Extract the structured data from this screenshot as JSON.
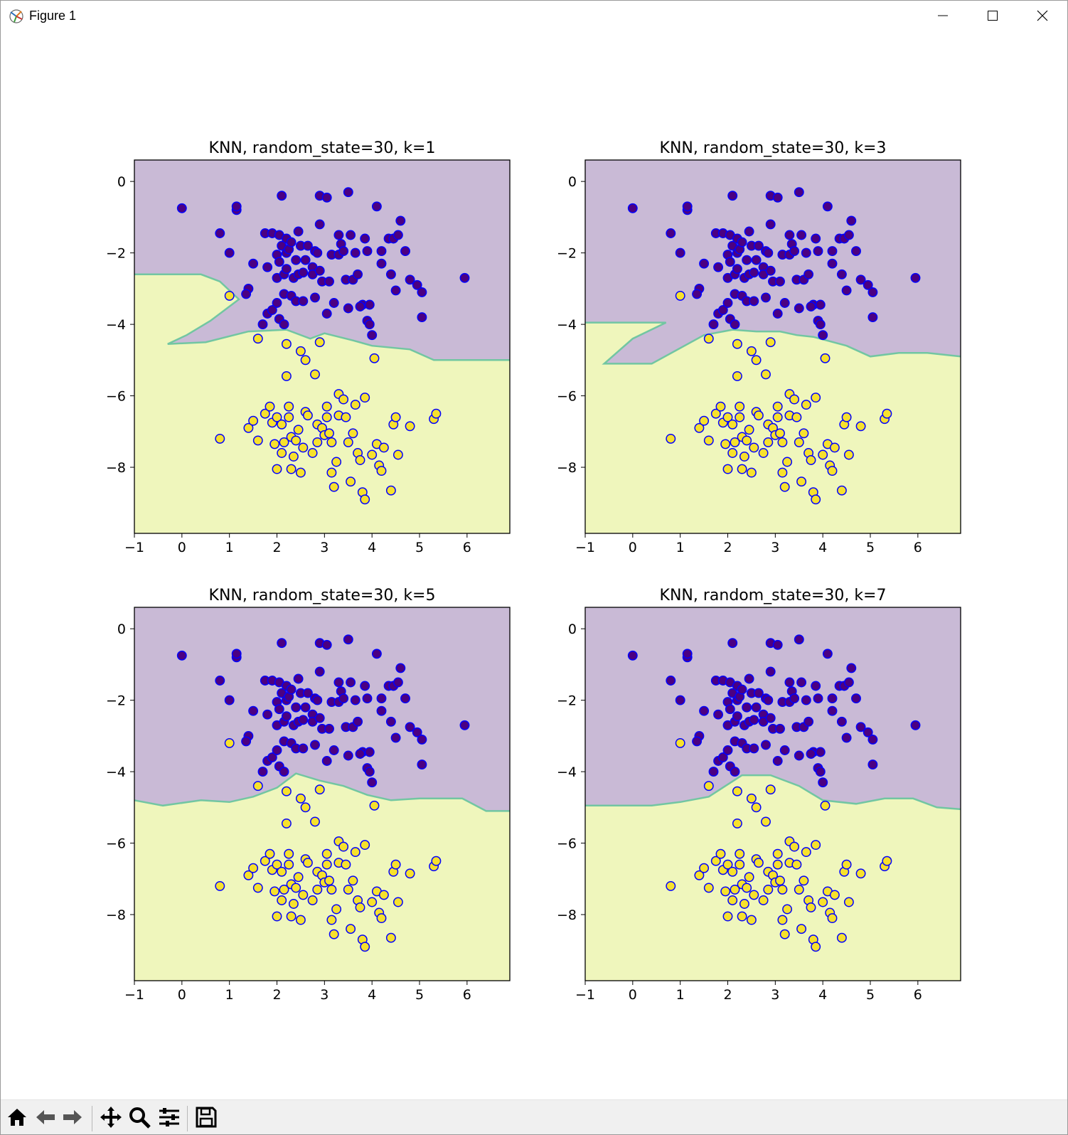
{
  "window": {
    "title": "Figure 1",
    "icons": {
      "app": "matplotlib-figure-icon",
      "minimize": "minimize-icon",
      "maximize": "maximize-icon",
      "close": "close-icon"
    }
  },
  "toolbar": {
    "buttons": [
      {
        "name": "home-button",
        "icon": "home-icon"
      },
      {
        "name": "back-button",
        "icon": "arrow-left-icon"
      },
      {
        "name": "forward-button",
        "icon": "arrow-right-icon"
      },
      {
        "name": "pan-button",
        "icon": "move-icon"
      },
      {
        "name": "zoom-button",
        "icon": "magnifier-icon"
      },
      {
        "name": "configure-subplots-button",
        "icon": "sliders-icon"
      },
      {
        "name": "save-button",
        "icon": "floppy-disk-icon"
      }
    ]
  },
  "colors": {
    "region_class0": "#c9bad6",
    "region_class1": "#eff6bc",
    "class0_fill": "#4b0082",
    "class1_fill": "#f7e12c",
    "marker_edge": "#0000ff",
    "boundary": "#72c6a2"
  },
  "chart_data": [
    {
      "type": "scatter",
      "title": "KNN, random_state=30, k=1",
      "xlabel": "",
      "ylabel": "",
      "xlim": [
        -1,
        6.9
      ],
      "ylim": [
        -9.85,
        0.6
      ],
      "xticks": [
        "−1",
        "0",
        "1",
        "2",
        "3",
        "4",
        "5",
        "6"
      ],
      "yticks": [
        "0",
        "−2",
        "−4",
        "−6",
        "−8"
      ],
      "grid": false,
      "boundary": [
        [
          -1,
          -2.6
        ],
        [
          0.4,
          -2.6
        ],
        [
          0.8,
          -2.8
        ],
        [
          1.2,
          -3.3
        ],
        [
          0.6,
          -3.9
        ],
        [
          0.1,
          -4.3
        ],
        [
          -0.3,
          -4.55
        ],
        [
          0.5,
          -4.5
        ],
        [
          1.4,
          -4.2
        ],
        [
          2.2,
          -4.15
        ],
        [
          2.7,
          -4.4
        ],
        [
          3.0,
          -4.25
        ],
        [
          3.6,
          -4.45
        ],
        [
          4.0,
          -4.6
        ],
        [
          4.8,
          -4.7
        ],
        [
          5.3,
          -5.0
        ],
        [
          6.9,
          -5.0
        ]
      ],
      "series": [
        {
          "class": 0,
          "points": [
            [
              0,
              -0.75
            ],
            [
              0.8,
              -1.45
            ],
            [
              1,
              -2
            ],
            [
              1.15,
              -0.8
            ],
            [
              1.15,
              -0.7
            ],
            [
              1.4,
              -3
            ],
            [
              1.5,
              -2.3
            ],
            [
              1.7,
              -4
            ],
            [
              1.75,
              -1.45
            ],
            [
              1.8,
              -2.4
            ],
            [
              1.8,
              -3.7
            ],
            [
              1.9,
              -1.45
            ],
            [
              1.9,
              -3.6
            ],
            [
              2,
              -2.05
            ],
            [
              2,
              -2.7
            ],
            [
              2,
              -3.4
            ],
            [
              2.05,
              -1.5
            ],
            [
              2.05,
              -2.25
            ],
            [
              2.05,
              -3.85
            ],
            [
              2.1,
              -0.4
            ],
            [
              2.1,
              -1.8
            ],
            [
              2.15,
              -2.6
            ],
            [
              2.15,
              -3.15
            ],
            [
              2.2,
              -1.6
            ],
            [
              2.2,
              -2
            ],
            [
              2.2,
              -2.45
            ],
            [
              2.25,
              -1.9
            ],
            [
              2.3,
              -1.7
            ],
            [
              2.3,
              -3.2
            ],
            [
              2.35,
              -2.7
            ],
            [
              2.4,
              -2.2
            ],
            [
              2.4,
              -3.35
            ],
            [
              2.45,
              -1.4
            ],
            [
              2.45,
              -2.6
            ],
            [
              2.5,
              -1.8
            ],
            [
              2.55,
              -2.55
            ],
            [
              2.55,
              -3.35
            ],
            [
              2.6,
              -2.2
            ],
            [
              2.65,
              -1.8
            ],
            [
              2.75,
              -2.4
            ],
            [
              2.75,
              -2.6
            ],
            [
              2.8,
              -1.95
            ],
            [
              2.8,
              -3.25
            ],
            [
              2.85,
              -2
            ],
            [
              2.9,
              -0.4
            ],
            [
              2.9,
              -1.2
            ],
            [
              2.9,
              -2.5
            ],
            [
              2.95,
              -2.8
            ],
            [
              3.05,
              -0.45
            ],
            [
              3.05,
              -3.7
            ],
            [
              3.1,
              -2.8
            ],
            [
              3.15,
              -2.05
            ],
            [
              3.2,
              -3.4
            ],
            [
              3.3,
              -1.5
            ],
            [
              3.3,
              -2.05
            ],
            [
              3.35,
              -1.75
            ],
            [
              3.4,
              -1.95
            ],
            [
              3.45,
              -2.75
            ],
            [
              3.5,
              -0.3
            ],
            [
              3.5,
              -3.55
            ],
            [
              3.55,
              -1.5
            ],
            [
              3.6,
              -2.75
            ],
            [
              3.65,
              -2.0
            ],
            [
              3.7,
              -2.6
            ],
            [
              3.8,
              -3.45
            ],
            [
              3.85,
              -1.6
            ],
            [
              3.9,
              -1.95
            ],
            [
              3.9,
              -3.9
            ],
            [
              3.95,
              -4.0
            ],
            [
              3.95,
              -3.45
            ],
            [
              4,
              -4.3
            ],
            [
              4.1,
              -0.7
            ],
            [
              4.2,
              -1.95
            ],
            [
              4.35,
              -1.6
            ],
            [
              4.45,
              -1.6
            ],
            [
              4.4,
              -2.6
            ],
            [
              4.55,
              -1.5
            ],
            [
              4.6,
              -1.1
            ],
            [
              4.7,
              -1.95
            ],
            [
              4.8,
              -2.75
            ],
            [
              4.95,
              -2.9
            ],
            [
              5.05,
              -3.1
            ],
            [
              5.05,
              -3.8
            ],
            [
              5.95,
              -2.7
            ],
            [
              4.5,
              -3.05
            ],
            [
              3.75,
              -3.5
            ],
            [
              2.15,
              -4.0
            ],
            [
              1.35,
              -3.15
            ],
            [
              4.2,
              -2.3
            ]
          ]
        },
        {
          "class": 1,
          "points": [
            [
              0.8,
              -7.2
            ],
            [
              1,
              -3.2
            ],
            [
              1.4,
              -6.9
            ],
            [
              1.5,
              -6.7
            ],
            [
              1.6,
              -4.4
            ],
            [
              1.6,
              -7.25
            ],
            [
              1.75,
              -6.5
            ],
            [
              1.85,
              -6.3
            ],
            [
              1.9,
              -6.75
            ],
            [
              2,
              -8.05
            ],
            [
              2,
              -6.6
            ],
            [
              2.1,
              -6.8
            ],
            [
              2.15,
              -7.3
            ],
            [
              2.2,
              -5.45
            ],
            [
              2.2,
              -4.55
            ],
            [
              2.25,
              -6.3
            ],
            [
              2.25,
              -6.6
            ],
            [
              2.3,
              -7.15
            ],
            [
              2.3,
              -8.05
            ],
            [
              2.35,
              -7.7
            ],
            [
              2.4,
              -7.25
            ],
            [
              2.45,
              -6.95
            ],
            [
              2.5,
              -4.75
            ],
            [
              2.5,
              -8.15
            ],
            [
              2.6,
              -5.0
            ],
            [
              2.6,
              -6.45
            ],
            [
              2.65,
              -6.55
            ],
            [
              2.75,
              -7.6
            ],
            [
              2.8,
              -5.4
            ],
            [
              2.85,
              -6.8
            ],
            [
              2.85,
              -7.3
            ],
            [
              2.9,
              -4.5
            ],
            [
              2.95,
              -6.9
            ],
            [
              3,
              -7.1
            ],
            [
              3.05,
              -6.3
            ],
            [
              3.05,
              -6.6
            ],
            [
              3.1,
              -7.05
            ],
            [
              3.15,
              -7.3
            ],
            [
              3.2,
              -8.55
            ],
            [
              3.25,
              -7.85
            ],
            [
              3.3,
              -5.95
            ],
            [
              3.3,
              -6.55
            ],
            [
              3.4,
              -6.1
            ],
            [
              3.45,
              -6.6
            ],
            [
              3.5,
              -7.3
            ],
            [
              3.55,
              -8.4
            ],
            [
              3.6,
              -7.05
            ],
            [
              3.65,
              -6.25
            ],
            [
              3.7,
              -7.6
            ],
            [
              3.75,
              -7.8
            ],
            [
              3.8,
              -8.7
            ],
            [
              3.85,
              -6.05
            ],
            [
              3.85,
              -8.9
            ],
            [
              4,
              -7.65
            ],
            [
              4.05,
              -4.95
            ],
            [
              4.1,
              -7.35
            ],
            [
              4.15,
              -7.95
            ],
            [
              4.2,
              -8.1
            ],
            [
              4.4,
              -8.65
            ],
            [
              4.45,
              -6.8
            ],
            [
              4.5,
              -6.6
            ],
            [
              4.55,
              -7.65
            ],
            [
              4.8,
              -6.85
            ],
            [
              5.3,
              -6.65
            ],
            [
              5.35,
              -6.5
            ],
            [
              2.1,
              -7.6
            ],
            [
              2.55,
              -7.45
            ],
            [
              3.15,
              -8.15
            ],
            [
              4.25,
              -7.45
            ],
            [
              1.95,
              -7.35
            ]
          ]
        }
      ]
    },
    {
      "type": "scatter",
      "title": "KNN, random_state=30, k=3",
      "xlabel": "",
      "ylabel": "",
      "xlim": [
        -1,
        6.9
      ],
      "ylim": [
        -9.85,
        0.6
      ],
      "xticks": [
        "−1",
        "0",
        "1",
        "2",
        "3",
        "4",
        "5",
        "6"
      ],
      "yticks": [
        "0",
        "−2",
        "−4",
        "−6",
        "−8"
      ],
      "grid": false,
      "boundary": [
        [
          -1,
          -3.95
        ],
        [
          0.7,
          -3.95
        ],
        [
          0.0,
          -4.4
        ],
        [
          -0.6,
          -5.1
        ],
        [
          0.4,
          -5.1
        ],
        [
          1.5,
          -4.3
        ],
        [
          2.1,
          -4.15
        ],
        [
          2.6,
          -4.2
        ],
        [
          3.1,
          -4.2
        ],
        [
          3.45,
          -4.3
        ],
        [
          3.8,
          -4.35
        ],
        [
          4.5,
          -4.6
        ],
        [
          5.0,
          -4.9
        ],
        [
          5.6,
          -4.8
        ],
        [
          6.2,
          -4.8
        ],
        [
          6.9,
          -4.9
        ]
      ],
      "series": "same points as subplot 1"
    },
    {
      "type": "scatter",
      "title": "KNN, random_state=30, k=5",
      "xlabel": "",
      "ylabel": "",
      "xlim": [
        -1,
        6.9
      ],
      "ylim": [
        -9.85,
        0.6
      ],
      "xticks": [
        "−1",
        "0",
        "1",
        "2",
        "3",
        "4",
        "5",
        "6"
      ],
      "yticks": [
        "0",
        "−2",
        "−4",
        "−6",
        "−8"
      ],
      "grid": false,
      "boundary": [
        [
          -1,
          -4.8
        ],
        [
          -0.4,
          -4.95
        ],
        [
          0.4,
          -4.8
        ],
        [
          1.0,
          -4.85
        ],
        [
          1.5,
          -4.7
        ],
        [
          2.0,
          -4.45
        ],
        [
          2.4,
          -4.05
        ],
        [
          2.9,
          -4.25
        ],
        [
          3.4,
          -4.4
        ],
        [
          3.9,
          -4.65
        ],
        [
          4.4,
          -4.8
        ],
        [
          5.0,
          -4.75
        ],
        [
          5.9,
          -4.75
        ],
        [
          6.4,
          -5.1
        ],
        [
          6.9,
          -5.1
        ]
      ],
      "series": "same points as subplot 1"
    },
    {
      "type": "scatter",
      "title": "KNN, random_state=30, k=7",
      "xlabel": "",
      "ylabel": "",
      "xlim": [
        -1,
        6.9
      ],
      "ylim": [
        -9.85,
        0.6
      ],
      "xticks": [
        "−1",
        "0",
        "1",
        "2",
        "3",
        "4",
        "5",
        "6"
      ],
      "yticks": [
        "0",
        "−2",
        "−4",
        "−6",
        "−8"
      ],
      "grid": false,
      "boundary": [
        [
          -1,
          -4.95
        ],
        [
          0.4,
          -4.95
        ],
        [
          1.0,
          -4.85
        ],
        [
          1.6,
          -4.7
        ],
        [
          2.3,
          -4.1
        ],
        [
          2.9,
          -4.1
        ],
        [
          3.5,
          -4.4
        ],
        [
          4.0,
          -4.8
        ],
        [
          4.7,
          -4.9
        ],
        [
          5.3,
          -4.75
        ],
        [
          5.9,
          -4.75
        ],
        [
          6.4,
          -5.0
        ],
        [
          6.9,
          -5.05
        ]
      ],
      "series": "same points as subplot 1"
    }
  ]
}
